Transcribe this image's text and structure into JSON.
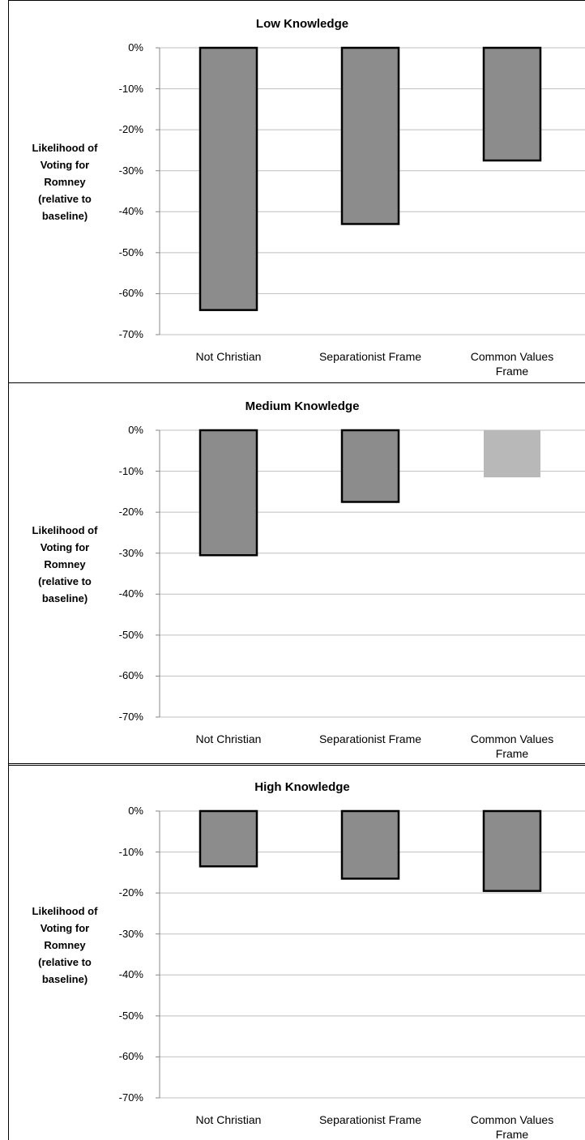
{
  "chart_data": [
    {
      "type": "bar",
      "title": "Low Knowledge",
      "ylabel": "Likelihood of\nVoting for\nRomney\n(relative to\nbaseline)",
      "categories": [
        "Not Christian",
        "Separationist Frame",
        "Common Values\nFrame"
      ],
      "values": [
        -64,
        -43,
        -27.5
      ],
      "colors": [
        "#8c8c8c",
        "#8c8c8c",
        "#8c8c8c"
      ],
      "outlined": [
        true,
        true,
        true
      ],
      "ylim": [
        -70,
        0
      ],
      "yticks": [
        {
          "value": 0,
          "label": "0%"
        },
        {
          "value": -10,
          "label": "-10%"
        },
        {
          "value": -20,
          "label": "-20%"
        },
        {
          "value": -30,
          "label": "-30%"
        },
        {
          "value": -40,
          "label": "-40%"
        },
        {
          "value": -50,
          "label": "-50%"
        },
        {
          "value": -60,
          "label": "-60%"
        },
        {
          "value": -70,
          "label": "-70%"
        }
      ],
      "grid": true
    },
    {
      "type": "bar",
      "title": "Medium Knowledge",
      "ylabel": "Likelihood of\nVoting for\nRomney\n(relative to\nbaseline)",
      "categories": [
        "Not Christian",
        "Separationist Frame",
        "Common Values\nFrame"
      ],
      "values": [
        -30.5,
        -17.5,
        -11.5
      ],
      "colors": [
        "#8c8c8c",
        "#8c8c8c",
        "#b8b8b8"
      ],
      "outlined": [
        true,
        true,
        false
      ],
      "ylim": [
        -70,
        0
      ],
      "yticks": [
        {
          "value": 0,
          "label": "0%"
        },
        {
          "value": -10,
          "label": "-10%"
        },
        {
          "value": -20,
          "label": "-20%"
        },
        {
          "value": -30,
          "label": "-30%"
        },
        {
          "value": -40,
          "label": "-40%"
        },
        {
          "value": -50,
          "label": "-50%"
        },
        {
          "value": -60,
          "label": "-60%"
        },
        {
          "value": -70,
          "label": "-70%"
        }
      ],
      "grid": true
    },
    {
      "type": "bar",
      "title": "High Knowledge",
      "ylabel": "Likelihood of\nVoting for\nRomney\n(relative to\nbaseline)",
      "categories": [
        "Not Christian",
        "Separationist Frame",
        "Common Values\nFrame"
      ],
      "values": [
        -13.5,
        -16.5,
        -19.5
      ],
      "colors": [
        "#8c8c8c",
        "#8c8c8c",
        "#8c8c8c"
      ],
      "outlined": [
        true,
        true,
        true
      ],
      "ylim": [
        -70,
        0
      ],
      "yticks": [
        {
          "value": 0,
          "label": "0%"
        },
        {
          "value": -10,
          "label": "-10%"
        },
        {
          "value": -20,
          "label": "-20%"
        },
        {
          "value": -30,
          "label": "-30%"
        },
        {
          "value": -40,
          "label": "-40%"
        },
        {
          "value": -50,
          "label": "-50%"
        },
        {
          "value": -60,
          "label": "-60%"
        },
        {
          "value": -70,
          "label": "-70%"
        }
      ],
      "grid": true
    }
  ]
}
